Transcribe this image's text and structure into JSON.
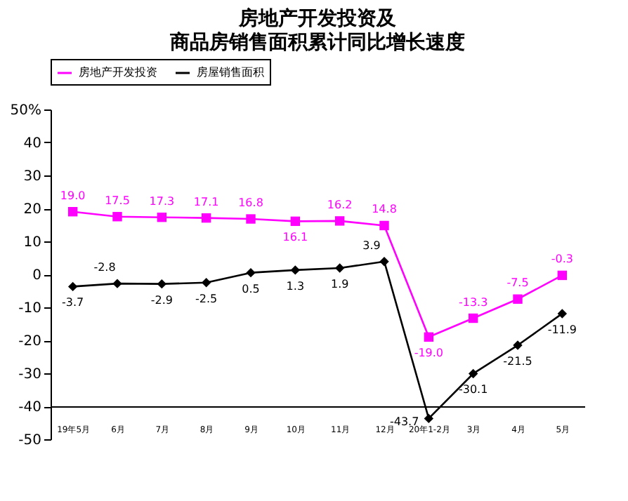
{
  "chart_data": {
    "type": "line",
    "title": "房地产开发投资及",
    "subtitle": "商品房销售面积累计同比增长速度",
    "categories": [
      "19年5月",
      "6月",
      "7月",
      "8月",
      "9月",
      "10月",
      "11月",
      "12月",
      "20年1-2月",
      "3月",
      "4月",
      "5月"
    ],
    "series": [
      {
        "name": "房地产开发投资",
        "color": "#ff00ff",
        "marker": "square",
        "values": [
          19.0,
          17.5,
          17.3,
          17.1,
          16.8,
          16.1,
          16.2,
          14.8,
          -19.0,
          -13.3,
          -7.5,
          -0.3
        ],
        "value_labels": [
          "19.0",
          "17.5",
          "17.3",
          "17.1",
          "16.8",
          "16.1",
          "16.2",
          "14.8",
          "-19.0",
          "-13.3",
          "-7.5",
          "-0.3"
        ]
      },
      {
        "name": "房屋销售面积",
        "color": "#000000",
        "marker": "diamond",
        "values": [
          -3.7,
          -2.8,
          -2.9,
          -2.5,
          0.5,
          1.3,
          1.9,
          3.9,
          -43.7,
          -30.1,
          -21.5,
          -11.9
        ],
        "value_labels": [
          "-3.7",
          "-2.8",
          "-2.9",
          "-2.5",
          "0.5",
          "1.3",
          "1.9",
          "3.9",
          "-43.7",
          "-30.1",
          "-21.5",
          "-11.9"
        ]
      }
    ],
    "ylim": [
      -50,
      50
    ],
    "yticks": [
      -50,
      -40,
      -30,
      -20,
      -10,
      0,
      10,
      20,
      30,
      40,
      {
        "value": 50,
        "label": "50%"
      }
    ],
    "legend": "top",
    "grid": false
  }
}
